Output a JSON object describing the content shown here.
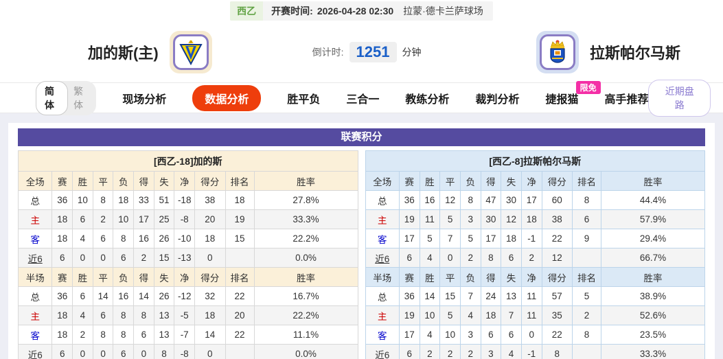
{
  "top_bar": {
    "league": "西乙",
    "kickoff_label": "开赛时间:",
    "kickoff_time": "2026-04-28 02:30",
    "venue": "拉蒙·德卡兰萨球场"
  },
  "header": {
    "home_team": "加的斯(主)",
    "away_team": "拉斯帕尔马斯",
    "countdown_label": "倒计时:",
    "countdown_value": "1251",
    "countdown_unit": "分钟",
    "home_logo_icon": "cadiz-crest-icon",
    "away_logo_icon": "las-palmas-crest-icon"
  },
  "nav": {
    "lang_simplified": "简体",
    "lang_traditional": "繁体",
    "tabs": [
      {
        "label": "现场分析",
        "active": false
      },
      {
        "label": "数据分析",
        "active": true
      },
      {
        "label": "胜平负",
        "active": false
      },
      {
        "label": "三合一",
        "active": false
      },
      {
        "label": "教练分析",
        "active": false
      },
      {
        "label": "裁判分析",
        "active": false
      },
      {
        "label": "捷报猫",
        "active": false,
        "badge": "限免"
      },
      {
        "label": "高手推荐",
        "active": false
      }
    ],
    "recent_odds_button": "近期盘路"
  },
  "section_title": "联赛积分",
  "tables": {
    "home": {
      "title": "[西乙-18]加的斯",
      "full": {
        "headers": [
          "全场",
          "赛",
          "胜",
          "平",
          "负",
          "得",
          "失",
          "净",
          "得分",
          "排名",
          "胜率"
        ],
        "rows": [
          {
            "label": "总",
            "values": [
              "36",
              "10",
              "8",
              "18",
              "33",
              "51",
              "-18",
              "38",
              "18",
              "27.8%"
            ]
          },
          {
            "label": "主",
            "values": [
              "18",
              "6",
              "2",
              "10",
              "17",
              "25",
              "-8",
              "20",
              "19",
              "33.3%"
            ]
          },
          {
            "label": "客",
            "values": [
              "18",
              "4",
              "6",
              "8",
              "16",
              "26",
              "-10",
              "18",
              "15",
              "22.2%"
            ]
          },
          {
            "label": "近6",
            "values": [
              "6",
              "0",
              "0",
              "6",
              "2",
              "15",
              "-13",
              "0",
              "",
              "0.0%"
            ]
          }
        ]
      },
      "half": {
        "headers": [
          "半场",
          "赛",
          "胜",
          "平",
          "负",
          "得",
          "失",
          "净",
          "得分",
          "排名",
          "胜率"
        ],
        "rows": [
          {
            "label": "总",
            "values": [
              "36",
              "6",
              "14",
              "16",
              "14",
              "26",
              "-12",
              "32",
              "22",
              "16.7%"
            ]
          },
          {
            "label": "主",
            "values": [
              "18",
              "4",
              "6",
              "8",
              "8",
              "13",
              "-5",
              "18",
              "20",
              "22.2%"
            ]
          },
          {
            "label": "客",
            "values": [
              "18",
              "2",
              "8",
              "8",
              "6",
              "13",
              "-7",
              "14",
              "22",
              "11.1%"
            ]
          },
          {
            "label": "近6",
            "values": [
              "6",
              "0",
              "0",
              "6",
              "0",
              "8",
              "-8",
              "0",
              "",
              "0.0%"
            ]
          }
        ]
      }
    },
    "away": {
      "title": "[西乙-8]拉斯帕尔马斯",
      "full": {
        "headers": [
          "全场",
          "赛",
          "胜",
          "平",
          "负",
          "得",
          "失",
          "净",
          "得分",
          "排名",
          "胜率"
        ],
        "rows": [
          {
            "label": "总",
            "values": [
              "36",
              "16",
              "12",
              "8",
              "47",
              "30",
              "17",
              "60",
              "8",
              "44.4%"
            ]
          },
          {
            "label": "主",
            "values": [
              "19",
              "11",
              "5",
              "3",
              "30",
              "12",
              "18",
              "38",
              "6",
              "57.9%"
            ]
          },
          {
            "label": "客",
            "values": [
              "17",
              "5",
              "7",
              "5",
              "17",
              "18",
              "-1",
              "22",
              "9",
              "29.4%"
            ]
          },
          {
            "label": "近6",
            "values": [
              "6",
              "4",
              "0",
              "2",
              "8",
              "6",
              "2",
              "12",
              "",
              "66.7%"
            ]
          }
        ]
      },
      "half": {
        "headers": [
          "半场",
          "赛",
          "胜",
          "平",
          "负",
          "得",
          "失",
          "净",
          "得分",
          "排名",
          "胜率"
        ],
        "rows": [
          {
            "label": "总",
            "values": [
              "36",
              "14",
              "15",
              "7",
              "24",
              "13",
              "11",
              "57",
              "5",
              "38.9%"
            ]
          },
          {
            "label": "主",
            "values": [
              "19",
              "10",
              "5",
              "4",
              "18",
              "7",
              "11",
              "35",
              "2",
              "52.6%"
            ]
          },
          {
            "label": "客",
            "values": [
              "17",
              "4",
              "10",
              "3",
              "6",
              "6",
              "0",
              "22",
              "8",
              "23.5%"
            ]
          },
          {
            "label": "近6",
            "values": [
              "6",
              "2",
              "2",
              "2",
              "3",
              "4",
              "-1",
              "8",
              "",
              "33.3%"
            ]
          }
        ]
      }
    }
  },
  "colors": {
    "accent_purple": "#554ba0",
    "active_tab_orange": "#ee3e0c",
    "badge_pink": "#f42fa6",
    "home_row_red": "#cc0000",
    "away_row_blue": "#0000cc",
    "countdown_blue": "#1a5fc8",
    "league_green": "#61a344"
  }
}
